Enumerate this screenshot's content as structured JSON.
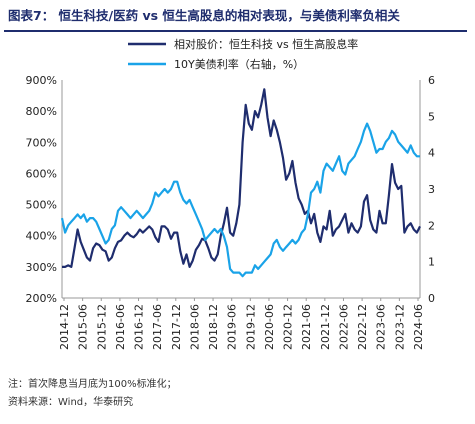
{
  "title": "图表7：  恒生科技/医药 vs 恒生高股息的相对表现，与美债利率负相关",
  "notes": [
    "注：首次降息当月底为100%标准化；",
    "资料来源：Wind，华泰研究"
  ],
  "colors": {
    "relative": "#1f2d6e",
    "yield": "#1aa3e8",
    "axis": "#999999"
  },
  "chart_data": {
    "type": "line",
    "legend_position": "top-center",
    "grid": false,
    "xlabels": [
      "2014-12",
      "2015-06",
      "2015-12",
      "2016-06",
      "2016-12",
      "2017-06",
      "2017-12",
      "2018-06",
      "2018-12",
      "2019-06",
      "2019-12",
      "2020-06",
      "2020-12",
      "2021-06",
      "2021-12",
      "2022-06",
      "2022-12",
      "2023-06",
      "2023-12",
      "2024-06"
    ],
    "x_range": [
      0,
      115
    ],
    "yleft": {
      "ticks": [
        "200%",
        "300%",
        "400%",
        "500%",
        "600%",
        "700%",
        "800%",
        "900%"
      ],
      "range": [
        200,
        900
      ]
    },
    "yright": {
      "ticks": [
        "0",
        "1",
        "2",
        "3",
        "4",
        "5",
        "6"
      ],
      "range": [
        0,
        6
      ]
    },
    "series": [
      {
        "name": "相对股价：恒生科技 vs 恒生高股息率",
        "axis": "left",
        "values": [
          300,
          300,
          305,
          300,
          360,
          420,
          380,
          355,
          330,
          320,
          360,
          375,
          370,
          355,
          350,
          320,
          330,
          360,
          380,
          385,
          400,
          410,
          400,
          395,
          405,
          420,
          410,
          420,
          430,
          420,
          395,
          380,
          430,
          430,
          420,
          390,
          410,
          410,
          350,
          310,
          340,
          300,
          320,
          355,
          370,
          390,
          385,
          360,
          330,
          320,
          340,
          400,
          440,
          490,
          410,
          400,
          440,
          500,
          700,
          820,
          760,
          740,
          800,
          780,
          820,
          870,
          780,
          720,
          770,
          740,
          700,
          650,
          580,
          600,
          640,
          570,
          520,
          500,
          470,
          480,
          440,
          470,
          410,
          380,
          430,
          420,
          480,
          400,
          420,
          430,
          450,
          470,
          410,
          440,
          420,
          410,
          430,
          510,
          530,
          450,
          420,
          410,
          480,
          440,
          440,
          530,
          630,
          570,
          550,
          560,
          410,
          430,
          440,
          420,
          410,
          430
        ]
      },
      {
        "name": "10Y美债利率（右轴，%）",
        "axis": "right",
        "values": [
          2.2,
          1.8,
          2.0,
          2.1,
          2.2,
          2.3,
          2.2,
          2.3,
          2.1,
          2.2,
          2.2,
          2.1,
          1.9,
          1.7,
          1.5,
          1.6,
          1.9,
          2.0,
          2.4,
          2.5,
          2.4,
          2.3,
          2.2,
          2.3,
          2.4,
          2.3,
          2.2,
          2.3,
          2.4,
          2.6,
          2.9,
          2.8,
          2.9,
          3.0,
          2.9,
          3.0,
          3.2,
          3.2,
          2.9,
          2.7,
          2.6,
          2.7,
          2.5,
          2.3,
          2.1,
          1.9,
          1.6,
          1.7,
          1.8,
          1.9,
          1.8,
          1.9,
          1.7,
          1.4,
          0.8,
          0.7,
          0.7,
          0.7,
          0.6,
          0.7,
          0.7,
          0.7,
          0.9,
          0.8,
          0.9,
          1.0,
          1.1,
          1.2,
          1.5,
          1.6,
          1.4,
          1.3,
          1.4,
          1.5,
          1.6,
          1.5,
          1.6,
          1.8,
          1.9,
          2.3,
          2.9,
          3.0,
          3.2,
          2.9,
          3.5,
          3.7,
          3.6,
          3.5,
          3.7,
          3.9,
          3.5,
          3.4,
          3.7,
          3.8,
          3.9,
          4.1,
          4.3,
          4.6,
          4.8,
          4.6,
          4.3,
          4.0,
          4.1,
          4.1,
          4.3,
          4.4,
          4.6,
          4.5,
          4.3,
          4.2,
          4.1,
          4.0,
          4.2,
          4.0,
          3.9,
          3.9
        ]
      }
    ]
  }
}
